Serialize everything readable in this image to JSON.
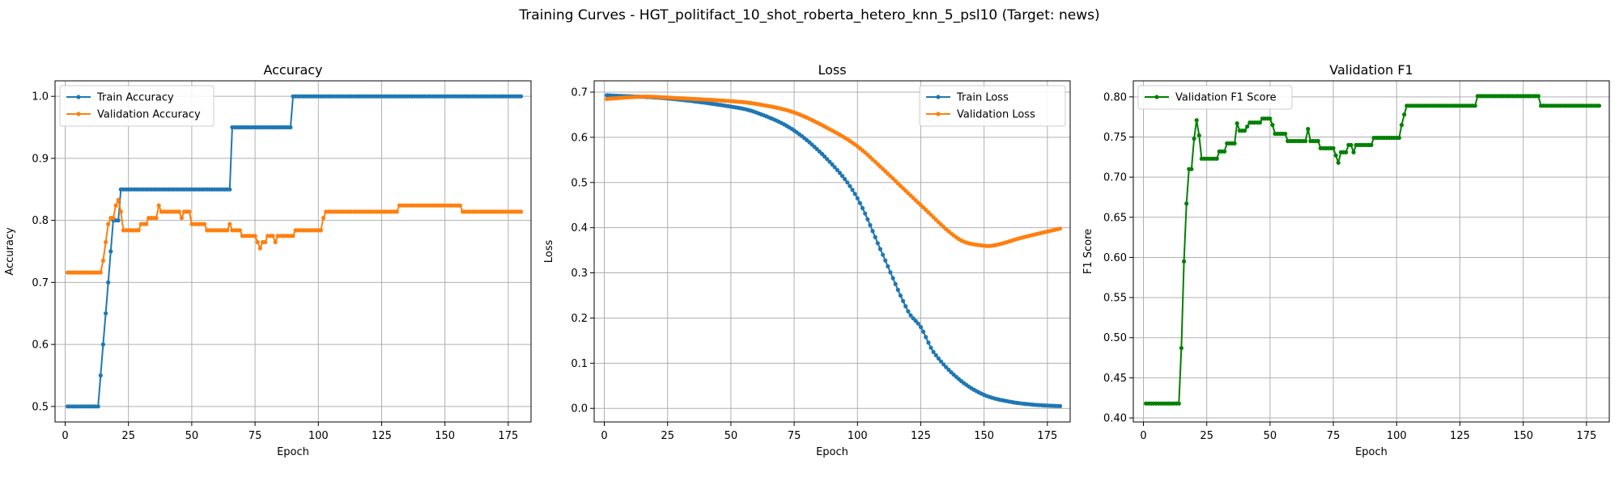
{
  "suptitle": "Training Curves - HGT_politifact_10_shot_roberta_hetero_knn_5_psl10 (Target: news)",
  "colors": {
    "blue": "#1f77b4",
    "orange": "#ff7f0e",
    "green": "#008000",
    "grid": "#b0b0b0"
  },
  "chart_data": [
    {
      "type": "line",
      "title": "Accuracy",
      "xlabel": "Epoch",
      "ylabel": "Accuracy",
      "xlim": [
        -4,
        184
      ],
      "ylim": [
        0.475,
        1.025
      ],
      "xticks": [
        0,
        25,
        50,
        75,
        100,
        125,
        150,
        175
      ],
      "yticks": [
        0.5,
        0.6,
        0.7,
        0.8,
        0.9,
        1.0
      ],
      "ytick_labels": [
        "0.5",
        "0.6",
        "0.7",
        "0.8",
        "0.9",
        "1.0"
      ],
      "grid": true,
      "legend": "upper left",
      "series": [
        {
          "name": "Train Accuracy",
          "color": "blue",
          "steps": [
            [
              1,
              0.5
            ],
            [
              13,
              0.5
            ],
            [
              14,
              0.55
            ],
            [
              15,
              0.6
            ],
            [
              16,
              0.65
            ],
            [
              17,
              0.7
            ],
            [
              18,
              0.75
            ],
            [
              19,
              0.8
            ],
            [
              21,
              0.8
            ],
            [
              22,
              0.85
            ],
            [
              65,
              0.85
            ],
            [
              66,
              0.95
            ],
            [
              89,
              0.95
            ],
            [
              90,
              1.0
            ],
            [
              180,
              1.0
            ]
          ]
        },
        {
          "name": "Validation Accuracy",
          "color": "orange",
          "steps": [
            [
              1,
              0.716
            ],
            [
              14,
              0.716
            ],
            [
              15,
              0.735
            ],
            [
              16,
              0.765
            ],
            [
              17,
              0.794
            ],
            [
              18,
              0.804
            ],
            [
              19,
              0.804
            ],
            [
              20,
              0.824
            ],
            [
              21,
              0.833
            ],
            [
              22,
              0.814
            ],
            [
              23,
              0.784
            ],
            [
              29,
              0.784
            ],
            [
              30,
              0.794
            ],
            [
              32,
              0.794
            ],
            [
              33,
              0.804
            ],
            [
              36,
              0.804
            ],
            [
              37,
              0.824
            ],
            [
              38,
              0.814
            ],
            [
              45,
              0.814
            ],
            [
              46,
              0.804
            ],
            [
              47,
              0.814
            ],
            [
              49,
              0.814
            ],
            [
              50,
              0.794
            ],
            [
              55,
              0.794
            ],
            [
              56,
              0.784
            ],
            [
              64,
              0.784
            ],
            [
              65,
              0.794
            ],
            [
              66,
              0.784
            ],
            [
              69,
              0.784
            ],
            [
              70,
              0.775
            ],
            [
              75,
              0.775
            ],
            [
              76,
              0.765
            ],
            [
              77,
              0.755
            ],
            [
              78,
              0.765
            ],
            [
              79,
              0.765
            ],
            [
              80,
              0.775
            ],
            [
              82,
              0.775
            ],
            [
              83,
              0.765
            ],
            [
              84,
              0.775
            ],
            [
              90,
              0.775
            ],
            [
              91,
              0.784
            ],
            [
              101,
              0.784
            ],
            [
              102,
              0.804
            ],
            [
              103,
              0.814
            ],
            [
              131,
              0.814
            ],
            [
              132,
              0.824
            ],
            [
              156,
              0.824
            ],
            [
              157,
              0.814
            ],
            [
              180,
              0.814
            ]
          ]
        }
      ]
    },
    {
      "type": "line",
      "title": "Loss",
      "xlabel": "Epoch",
      "ylabel": "Loss",
      "xlim": [
        -4,
        184
      ],
      "ylim": [
        -0.03,
        0.725
      ],
      "xticks": [
        0,
        25,
        50,
        75,
        100,
        125,
        150,
        175
      ],
      "yticks": [
        0.0,
        0.1,
        0.2,
        0.3,
        0.4,
        0.5,
        0.6,
        0.7
      ],
      "ytick_labels": [
        "0.0",
        "0.1",
        "0.2",
        "0.3",
        "0.4",
        "0.5",
        "0.6",
        "0.7"
      ],
      "grid": true,
      "legend": "upper right",
      "series": [
        {
          "name": "Train Loss",
          "color": "blue",
          "knots": [
            [
              1,
              0.693
            ],
            [
              25,
              0.686
            ],
            [
              50,
              0.668
            ],
            [
              60,
              0.655
            ],
            [
              75,
              0.615
            ],
            [
              90,
              0.54
            ],
            [
              100,
              0.465
            ],
            [
              110,
              0.34
            ],
            [
              120,
              0.215
            ],
            [
              125,
              0.18
            ],
            [
              130,
              0.125
            ],
            [
              140,
              0.065
            ],
            [
              150,
              0.03
            ],
            [
              160,
              0.015
            ],
            [
              170,
              0.008
            ],
            [
              180,
              0.005
            ]
          ]
        },
        {
          "name": "Validation Loss",
          "color": "orange",
          "knots": [
            [
              1,
              0.685
            ],
            [
              15,
              0.69
            ],
            [
              25,
              0.688
            ],
            [
              50,
              0.68
            ],
            [
              60,
              0.674
            ],
            [
              75,
              0.655
            ],
            [
              90,
              0.615
            ],
            [
              100,
              0.58
            ],
            [
              110,
              0.53
            ],
            [
              125,
              0.45
            ],
            [
              140,
              0.375
            ],
            [
              150,
              0.36
            ],
            [
              155,
              0.362
            ],
            [
              165,
              0.378
            ],
            [
              180,
              0.398
            ]
          ]
        }
      ]
    },
    {
      "type": "line",
      "title": "Validation F1",
      "xlabel": "Epoch",
      "ylabel": "F1 Score",
      "xlim": [
        -4,
        184
      ],
      "ylim": [
        0.395,
        0.82
      ],
      "xticks": [
        0,
        25,
        50,
        75,
        100,
        125,
        150,
        175
      ],
      "yticks": [
        0.4,
        0.45,
        0.5,
        0.55,
        0.6,
        0.65,
        0.7,
        0.75,
        0.8
      ],
      "ytick_labels": [
        "0.40",
        "0.45",
        "0.50",
        "0.55",
        "0.60",
        "0.65",
        "0.70",
        "0.75",
        "0.80"
      ],
      "grid": true,
      "legend": "upper left",
      "series": [
        {
          "name": "Validation F1 Score",
          "color": "green",
          "steps": [
            [
              1,
              0.418
            ],
            [
              14,
              0.418
            ],
            [
              15,
              0.487
            ],
            [
              16,
              0.595
            ],
            [
              17,
              0.667
            ],
            [
              18,
              0.71
            ],
            [
              19,
              0.71
            ],
            [
              20,
              0.748
            ],
            [
              21,
              0.771
            ],
            [
              22,
              0.752
            ],
            [
              23,
              0.723
            ],
            [
              29,
              0.723
            ],
            [
              30,
              0.732
            ],
            [
              32,
              0.732
            ],
            [
              33,
              0.742
            ],
            [
              36,
              0.742
            ],
            [
              37,
              0.767
            ],
            [
              38,
              0.758
            ],
            [
              40,
              0.758
            ],
            [
              41,
              0.763
            ],
            [
              42,
              0.768
            ],
            [
              46,
              0.768
            ],
            [
              47,
              0.773
            ],
            [
              50,
              0.773
            ],
            [
              51,
              0.765
            ],
            [
              52,
              0.754
            ],
            [
              56,
              0.754
            ],
            [
              57,
              0.745
            ],
            [
              64,
              0.745
            ],
            [
              65,
              0.76
            ],
            [
              66,
              0.745
            ],
            [
              69,
              0.745
            ],
            [
              70,
              0.736
            ],
            [
              75,
              0.736
            ],
            [
              76,
              0.727
            ],
            [
              77,
              0.718
            ],
            [
              78,
              0.731
            ],
            [
              80,
              0.731
            ],
            [
              81,
              0.74
            ],
            [
              82,
              0.74
            ],
            [
              83,
              0.731
            ],
            [
              84,
              0.74
            ],
            [
              90,
              0.74
            ],
            [
              91,
              0.749
            ],
            [
              101,
              0.749
            ],
            [
              102,
              0.765
            ],
            [
              103,
              0.778
            ],
            [
              104,
              0.789
            ],
            [
              131,
              0.789
            ],
            [
              132,
              0.801
            ],
            [
              156,
              0.801
            ],
            [
              157,
              0.789
            ],
            [
              180,
              0.789
            ]
          ]
        }
      ]
    }
  ]
}
